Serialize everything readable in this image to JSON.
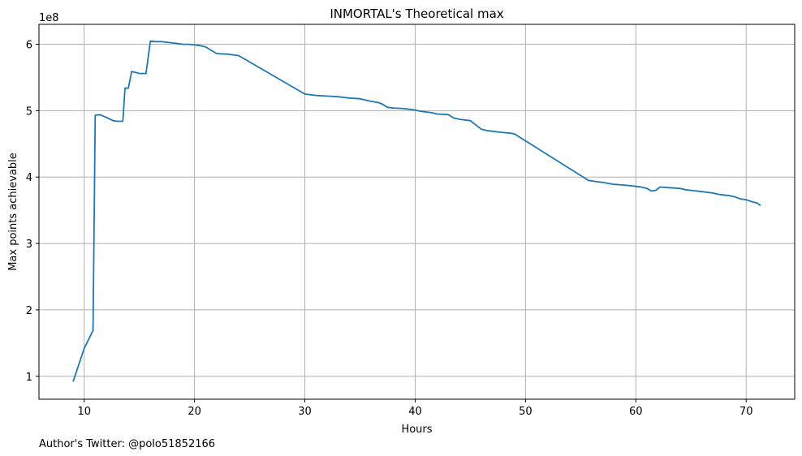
{
  "chart_data": {
    "type": "line",
    "title": "INMORTAL's Theoretical max",
    "xlabel": "Hours",
    "ylabel": "Max points achievable",
    "y_offset_label": "1e8",
    "footer": "Author's Twitter: @polo51852166",
    "grid": true,
    "line_color": "#1f77b4",
    "xlim": [
      5.9,
      74.4
    ],
    "ylim": [
      0.655,
      6.3
    ],
    "x_ticks": [
      10,
      20,
      30,
      40,
      50,
      60,
      70
    ],
    "y_ticks": [
      1,
      2,
      3,
      4,
      5,
      6
    ],
    "series": [
      {
        "x": [
          9.0,
          10.0,
          10.8,
          11.0,
          11.4,
          12.0,
          12.6,
          13.0,
          13.5,
          13.7,
          14.0,
          14.3,
          14.8,
          15.0,
          15.6,
          16.0,
          16.4,
          17.0,
          17.5,
          18.0,
          18.5,
          19.0,
          19.5,
          20.0,
          20.5,
          21.0,
          21.5,
          22.0,
          23.0,
          24.0,
          30.0,
          30.5,
          31.0,
          32.0,
          33.0,
          33.5,
          34.0,
          35.0,
          36.0,
          36.7,
          37.0,
          37.5,
          38.0,
          39.0,
          40.0,
          40.5,
          41.0,
          41.5,
          42.0,
          43.0,
          43.5,
          44.0,
          45.0,
          46.0,
          46.5,
          47.0,
          48.0,
          48.7,
          49.0,
          55.7,
          56.5,
          57.0,
          58.0,
          59.0,
          60.0,
          60.5,
          61.0,
          61.4,
          61.8,
          62.2,
          63.0,
          64.0,
          64.5,
          65.0,
          66.0,
          67.0,
          67.5,
          68.0,
          68.5,
          69.0,
          69.5,
          70.0,
          70.5,
          71.0,
          71.3
        ],
        "y": [
          0.92,
          1.42,
          1.69,
          4.93,
          4.94,
          4.9,
          4.85,
          4.84,
          4.84,
          5.34,
          5.34,
          5.59,
          5.57,
          5.56,
          5.56,
          6.05,
          6.04,
          6.04,
          6.03,
          6.02,
          6.01,
          6.0,
          6.0,
          5.99,
          5.98,
          5.96,
          5.91,
          5.86,
          5.85,
          5.83,
          5.25,
          5.24,
          5.23,
          5.22,
          5.21,
          5.2,
          5.19,
          5.18,
          5.14,
          5.12,
          5.1,
          5.05,
          5.04,
          5.03,
          5.01,
          4.99,
          4.98,
          4.97,
          4.95,
          4.94,
          4.89,
          4.87,
          4.85,
          4.72,
          4.7,
          4.69,
          4.67,
          4.66,
          4.65,
          3.95,
          3.93,
          3.92,
          3.89,
          3.88,
          3.86,
          3.85,
          3.83,
          3.79,
          3.8,
          3.85,
          3.84,
          3.83,
          3.81,
          3.8,
          3.78,
          3.76,
          3.74,
          3.73,
          3.72,
          3.7,
          3.67,
          3.66,
          3.63,
          3.61,
          3.57
        ]
      }
    ]
  }
}
